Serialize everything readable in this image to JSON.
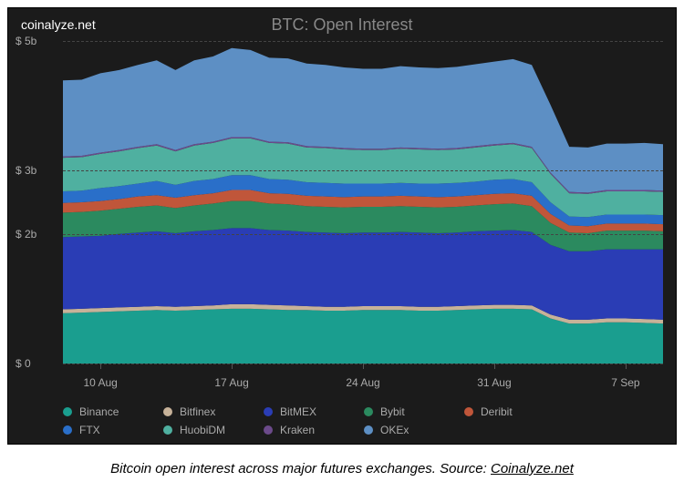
{
  "watermark": "coinalyze.net",
  "title": "BTC: Open Interest",
  "caption_prefix": "Bitcoin open interest across major futures exchanges. Source: ",
  "caption_link_text": "Coinalyze.net",
  "chart": {
    "type": "area-stacked",
    "background_color": "#1b1b1b",
    "grid_color": "#444444",
    "axis_label_color": "#aaaaaa",
    "title_color": "#888888",
    "title_fontsize": 18,
    "label_fontsize": 12,
    "y_unit_prefix": "$ ",
    "y_unit_suffix": "b",
    "ylim": [
      0,
      5
    ],
    "yticks": [
      0,
      2,
      3,
      5
    ],
    "ytick_labels": [
      "$ 0",
      "$ 2b",
      "$ 3b",
      "$ 5b"
    ],
    "x_count": 33,
    "xticks": [
      2,
      9,
      16,
      23,
      30
    ],
    "xtick_labels": [
      "10 Aug",
      "17 Aug",
      "24 Aug",
      "31 Aug",
      "7 Sep"
    ],
    "series": [
      {
        "name": "Binance",
        "color": "#1a9e8f",
        "values": [
          0.78,
          0.79,
          0.8,
          0.81,
          0.82,
          0.83,
          0.82,
          0.83,
          0.84,
          0.85,
          0.85,
          0.84,
          0.83,
          0.83,
          0.82,
          0.82,
          0.83,
          0.83,
          0.83,
          0.82,
          0.82,
          0.83,
          0.84,
          0.85,
          0.85,
          0.84,
          0.7,
          0.62,
          0.62,
          0.64,
          0.64,
          0.63,
          0.62
        ]
      },
      {
        "name": "Bitfinex",
        "color": "#c7b299",
        "values": [
          0.06,
          0.06,
          0.06,
          0.06,
          0.06,
          0.06,
          0.06,
          0.06,
          0.06,
          0.07,
          0.07,
          0.07,
          0.07,
          0.06,
          0.06,
          0.06,
          0.06,
          0.06,
          0.06,
          0.06,
          0.06,
          0.06,
          0.06,
          0.06,
          0.06,
          0.06,
          0.06,
          0.06,
          0.06,
          0.06,
          0.06,
          0.06,
          0.06
        ]
      },
      {
        "name": "BitMEX",
        "color": "#2a3db5",
        "values": [
          1.12,
          1.12,
          1.12,
          1.14,
          1.15,
          1.16,
          1.14,
          1.16,
          1.17,
          1.18,
          1.18,
          1.16,
          1.16,
          1.15,
          1.15,
          1.14,
          1.14,
          1.14,
          1.15,
          1.15,
          1.14,
          1.14,
          1.15,
          1.15,
          1.16,
          1.14,
          1.08,
          1.06,
          1.06,
          1.07,
          1.07,
          1.08,
          1.09
        ]
      },
      {
        "name": "Bybit",
        "color": "#2b8a5f",
        "values": [
          0.38,
          0.38,
          0.39,
          0.39,
          0.4,
          0.4,
          0.39,
          0.4,
          0.41,
          0.42,
          0.42,
          0.41,
          0.41,
          0.4,
          0.4,
          0.4,
          0.4,
          0.4,
          0.4,
          0.4,
          0.4,
          0.4,
          0.4,
          0.41,
          0.41,
          0.4,
          0.34,
          0.29,
          0.28,
          0.29,
          0.29,
          0.29,
          0.28
        ]
      },
      {
        "name": "Deribit",
        "color": "#c0563a",
        "values": [
          0.15,
          0.15,
          0.15,
          0.15,
          0.16,
          0.16,
          0.16,
          0.16,
          0.16,
          0.17,
          0.17,
          0.16,
          0.16,
          0.16,
          0.16,
          0.16,
          0.16,
          0.16,
          0.16,
          0.16,
          0.16,
          0.16,
          0.16,
          0.16,
          0.16,
          0.16,
          0.14,
          0.11,
          0.11,
          0.11,
          0.11,
          0.11,
          0.11
        ]
      },
      {
        "name": "FTX",
        "color": "#2a6fc9",
        "values": [
          0.18,
          0.18,
          0.2,
          0.2,
          0.2,
          0.22,
          0.2,
          0.22,
          0.22,
          0.23,
          0.23,
          0.22,
          0.22,
          0.21,
          0.21,
          0.21,
          0.2,
          0.2,
          0.2,
          0.2,
          0.21,
          0.21,
          0.21,
          0.22,
          0.22,
          0.21,
          0.18,
          0.14,
          0.14,
          0.14,
          0.14,
          0.14,
          0.14
        ]
      },
      {
        "name": "HuobiDM",
        "color": "#4fb0a0",
        "values": [
          0.52,
          0.52,
          0.53,
          0.54,
          0.55,
          0.55,
          0.52,
          0.55,
          0.56,
          0.57,
          0.57,
          0.56,
          0.56,
          0.54,
          0.54,
          0.53,
          0.52,
          0.52,
          0.53,
          0.53,
          0.52,
          0.52,
          0.53,
          0.53,
          0.54,
          0.53,
          0.44,
          0.36,
          0.36,
          0.36,
          0.36,
          0.36,
          0.36
        ]
      },
      {
        "name": "Kraken",
        "color": "#6b4a8a",
        "values": [
          0.02,
          0.02,
          0.02,
          0.02,
          0.02,
          0.02,
          0.02,
          0.02,
          0.02,
          0.02,
          0.02,
          0.02,
          0.02,
          0.02,
          0.02,
          0.02,
          0.02,
          0.02,
          0.02,
          0.02,
          0.02,
          0.02,
          0.02,
          0.02,
          0.02,
          0.02,
          0.02,
          0.02,
          0.02,
          0.02,
          0.02,
          0.02,
          0.02
        ]
      },
      {
        "name": "OKEx",
        "color": "#5d8fc4",
        "values": [
          1.18,
          1.18,
          1.23,
          1.24,
          1.27,
          1.3,
          1.24,
          1.3,
          1.32,
          1.38,
          1.35,
          1.3,
          1.3,
          1.28,
          1.27,
          1.25,
          1.24,
          1.24,
          1.26,
          1.25,
          1.25,
          1.26,
          1.27,
          1.28,
          1.3,
          1.27,
          1.05,
          0.7,
          0.7,
          0.72,
          0.72,
          0.73,
          0.72
        ]
      }
    ]
  }
}
